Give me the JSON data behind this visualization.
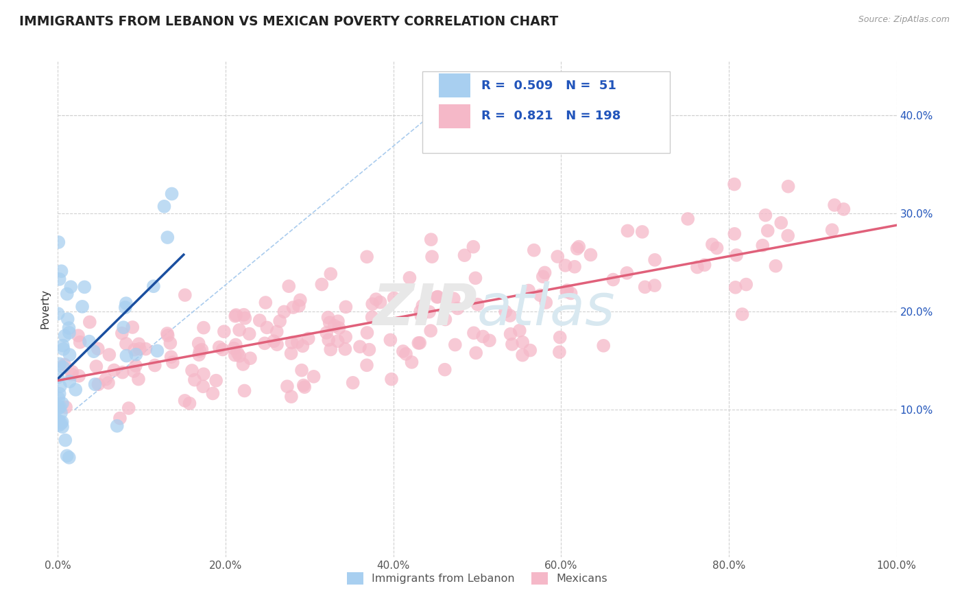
{
  "title": "IMMIGRANTS FROM LEBANON VS MEXICAN POVERTY CORRELATION CHART",
  "source": "Source: ZipAtlas.com",
  "ylabel": "Poverty",
  "xlim": [
    0.0,
    1.0
  ],
  "ylim": [
    -0.05,
    0.455
  ],
  "xtick_labels": [
    "0.0%",
    "20.0%",
    "40.0%",
    "60.0%",
    "80.0%",
    "100.0%"
  ],
  "xtick_vals": [
    0.0,
    0.2,
    0.4,
    0.6,
    0.8,
    1.0
  ],
  "ytick_labels": [
    "10.0%",
    "20.0%",
    "30.0%",
    "40.0%"
  ],
  "ytick_vals": [
    0.1,
    0.2,
    0.3,
    0.4
  ],
  "legend_label1": "Immigrants from Lebanon",
  "legend_label2": "Mexicans",
  "R1": 0.509,
  "N1": 51,
  "R2": 0.821,
  "N2": 198,
  "color1": "#a8cff0",
  "color2": "#f5b8c8",
  "trendline1_color": "#1a4fa0",
  "trendline2_color": "#e0607a",
  "refline_color": "#aaccee",
  "watermark": "ZIPAtlas",
  "background_color": "#ffffff",
  "grid_color": "#d0d0d0",
  "title_color": "#222222",
  "title_fontsize": 13.5,
  "axis_label_fontsize": 11,
  "tick_fontsize": 11,
  "source_fontsize": 9,
  "legend_R_color": "#2255bb",
  "legend_fontsize": 13
}
